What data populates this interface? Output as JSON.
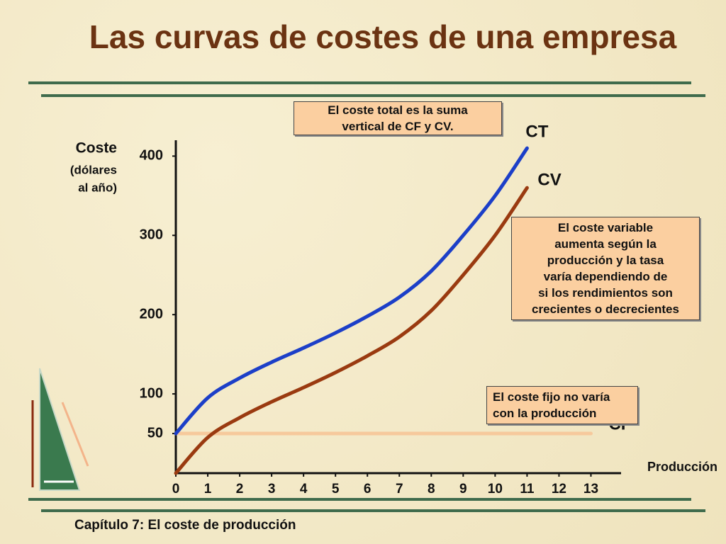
{
  "title": "Las curvas de costes de una empresa",
  "footer": "Capítulo 7: El coste de producción",
  "chart_data": {
    "type": "line",
    "y_label_lines": [
      "Coste",
      "(dólares",
      "al año)"
    ],
    "x_label": "Producción",
    "x": [
      0,
      1,
      2,
      3,
      4,
      5,
      6,
      7,
      8,
      9,
      10,
      11,
      12,
      13
    ],
    "series": [
      {
        "name": "CT",
        "color": "#1c3fc8",
        "values": [
          50,
          95,
          120,
          140,
          158,
          177,
          198,
          222,
          255,
          300,
          350,
          410,
          null,
          null
        ]
      },
      {
        "name": "CV",
        "color": "#9a3a10",
        "values": [
          0,
          45,
          70,
          90,
          108,
          127,
          148,
          172,
          205,
          250,
          300,
          360,
          null,
          null
        ]
      },
      {
        "name": "CF",
        "color": "#f6c99c",
        "values": [
          50,
          50,
          50,
          50,
          50,
          50,
          50,
          50,
          50,
          50,
          50,
          50,
          50,
          50
        ]
      }
    ],
    "xlim": [
      0,
      13.5
    ],
    "ylim": [
      0,
      420
    ],
    "xticks": [
      0,
      1,
      2,
      3,
      4,
      5,
      6,
      7,
      8,
      9,
      10,
      11,
      12,
      13
    ],
    "yticks": [
      50,
      100,
      200,
      300,
      400
    ],
    "annotations": [
      {
        "lines": [
          "El coste total es la suma",
          "vertical de CF y CV."
        ]
      },
      {
        "lines": [
          "El coste variable",
          "aumenta según la",
          "producción y la tasa",
          "varía dependiendo de",
          "si los rendimientos son",
          "crecientes o decrecientes"
        ]
      },
      {
        "lines": [
          "El coste fijo no varía",
          "con la producción"
        ]
      }
    ]
  }
}
